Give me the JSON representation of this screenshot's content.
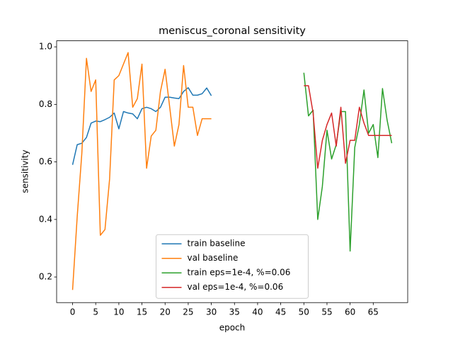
{
  "chart_data": {
    "type": "line",
    "title": "meniscus_coronal sensitivity",
    "x_label": "epoch",
    "y_label": "sensitivity",
    "series": [
      {
        "name": "train baseline",
        "color": "#1f77b4",
        "x": [
          0,
          1,
          2,
          3,
          4,
          5,
          6,
          7,
          8,
          9,
          10,
          11,
          12,
          13,
          14,
          15,
          16,
          17,
          18,
          19,
          20,
          21,
          22,
          23,
          24,
          25,
          26,
          27,
          28,
          29,
          30
        ],
        "values": [
          0.59,
          0.66,
          0.665,
          0.685,
          0.735,
          0.742,
          0.74,
          0.747,
          0.755,
          0.77,
          0.715,
          0.775,
          0.77,
          0.767,
          0.75,
          0.785,
          0.79,
          0.785,
          0.775,
          0.79,
          0.825,
          0.825,
          0.822,
          0.82,
          0.845,
          0.858,
          0.832,
          0.832,
          0.837,
          0.857,
          0.83
        ]
      },
      {
        "name": "val baseline",
        "color": "#ff7f0e",
        "x": [
          0,
          1,
          2,
          3,
          4,
          5,
          6,
          7,
          8,
          9,
          10,
          11,
          12,
          13,
          14,
          15,
          16,
          17,
          18,
          19,
          20,
          21,
          22,
          23,
          24,
          25,
          26,
          27,
          28,
          29,
          30
        ],
        "values": [
          0.155,
          0.41,
          0.63,
          0.96,
          0.845,
          0.885,
          0.345,
          0.365,
          0.54,
          0.885,
          0.9,
          0.94,
          0.98,
          0.79,
          0.82,
          0.94,
          0.578,
          0.69,
          0.71,
          0.845,
          0.922,
          0.79,
          0.655,
          0.73,
          0.935,
          0.79,
          0.79,
          0.692,
          0.75,
          0.75,
          0.75
        ]
      },
      {
        "name": "train eps=1e-4, %=0.06",
        "color": "#2ca02c",
        "x": [
          50,
          51,
          52,
          53,
          54,
          55,
          56,
          57,
          58,
          59,
          60,
          61,
          62,
          63,
          64,
          65,
          66,
          67,
          68,
          69
        ],
        "values": [
          0.91,
          0.76,
          0.78,
          0.4,
          0.515,
          0.71,
          0.61,
          0.66,
          0.775,
          0.775,
          0.29,
          0.65,
          0.73,
          0.85,
          0.7,
          0.73,
          0.615,
          0.855,
          0.745,
          0.665
        ]
      },
      {
        "name": "val eps=1e-4, %=0.06",
        "color": "#d62728",
        "x": [
          50,
          51,
          52,
          53,
          54,
          55,
          56,
          57,
          58,
          59,
          60,
          61,
          62,
          63,
          64,
          65,
          66,
          67,
          68,
          69
        ],
        "values": [
          0.865,
          0.865,
          0.77,
          0.578,
          0.675,
          0.73,
          0.77,
          0.655,
          0.79,
          0.595,
          0.675,
          0.675,
          0.79,
          0.735,
          0.692,
          0.692,
          0.692,
          0.692,
          0.692,
          0.692
        ]
      }
    ],
    "xlim": [
      -3.45,
      72.45
    ],
    "ylim": [
      0.111,
      1.021
    ],
    "xticks": [
      0,
      5,
      10,
      15,
      20,
      25,
      30,
      35,
      40,
      45,
      50,
      55,
      60,
      65
    ],
    "yticks": [
      0.2,
      0.4,
      0.6,
      0.8,
      {
        "value": 1,
        "label": "1.0"
      }
    ],
    "grid": false,
    "legend": "lower center"
  }
}
